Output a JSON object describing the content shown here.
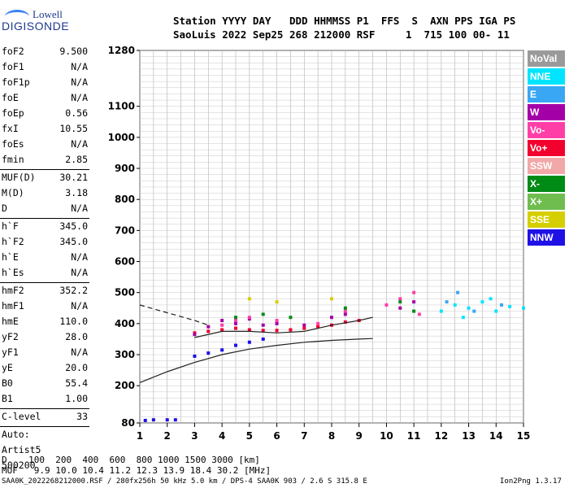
{
  "logo": {
    "top": "Lowell",
    "bottom": "DIGISONDE"
  },
  "header": {
    "line1": "Station YYYY DAY   DDD HHMMSS P1  FFS  S  AXN PPS IGA PS",
    "line2": "SaoLuis 2022 Sep25 268 212000 RSF     1  715 100 00- 11"
  },
  "params": {
    "group1": [
      {
        "key": "foF2",
        "value": "9.500"
      },
      {
        "key": "foF1",
        "value": "N/A"
      },
      {
        "key": "foF1p",
        "value": "N/A"
      },
      {
        "key": "foE",
        "value": "N/A"
      },
      {
        "key": "foEp",
        "value": "0.56"
      },
      {
        "key": "fxI",
        "value": "10.55"
      },
      {
        "key": "foEs",
        "value": "N/A"
      },
      {
        "key": "fmin",
        "value": "2.85"
      }
    ],
    "group2": [
      {
        "key": "MUF(D)",
        "value": "30.21"
      },
      {
        "key": "M(D)",
        "value": "3.18"
      },
      {
        "key": "D",
        "value": "N/A"
      }
    ],
    "group3": [
      {
        "key": "h`F",
        "value": "345.0"
      },
      {
        "key": "h`F2",
        "value": "345.0"
      },
      {
        "key": "h`E",
        "value": "N/A"
      },
      {
        "key": "h`Es",
        "value": "N/A"
      }
    ],
    "group4": [
      {
        "key": "hmF2",
        "value": "352.2"
      },
      {
        "key": "hmF1",
        "value": "N/A"
      },
      {
        "key": "hmE",
        "value": "110.0"
      },
      {
        "key": "yF2",
        "value": "28.0"
      },
      {
        "key": "yF1",
        "value": "N/A"
      },
      {
        "key": "yE",
        "value": "20.0"
      },
      {
        "key": "B0",
        "value": "55.4"
      },
      {
        "key": "B1",
        "value": "1.00"
      }
    ],
    "clevel": {
      "key": "C-level",
      "value": "33"
    },
    "auto": [
      "Auto:",
      "Artist5",
      "500200"
    ]
  },
  "legend": [
    {
      "label": "NoVal",
      "color": "#9a9a9a"
    },
    {
      "label": "NNE",
      "color": "#00e5ff"
    },
    {
      "label": "E",
      "color": "#3aa7f5"
    },
    {
      "label": "W",
      "color": "#a400a8"
    },
    {
      "label": "Vo-",
      "color": "#ff3fa8"
    },
    {
      "label": "Vo+",
      "color": "#f2002e"
    },
    {
      "label": "SSW",
      "color": "#f2a8a8"
    },
    {
      "label": "X-",
      "color": "#008a16"
    },
    {
      "label": "X+",
      "color": "#6fbd4f"
    },
    {
      "label": "SSE",
      "color": "#d6cf00"
    },
    {
      "label": "NNW",
      "color": "#1f10e6"
    }
  ],
  "footer": {
    "d_line": "D    100  200  400  600  800 1000 1500 3000 [km]",
    "muf_line": "MUF   9.9 10.0 10.4 11.2 12.3 13.9 18.4 30.2 [MHz]",
    "bottom_left": "SAA0K_2022268212000.RSF / 280fx256h 50 kHz 5.0 km / DPS-4 SAA0K 903 / 2.6 S 315.8 E",
    "bottom_right": "Ion2Png 1.3.17"
  },
  "chart_data": {
    "type": "scatter",
    "xlim": [
      1,
      15
    ],
    "ylim": [
      80,
      1280
    ],
    "xticks": [
      "1",
      "2",
      "3",
      "4",
      "5",
      "6",
      "7",
      "8",
      "9",
      "10",
      "11",
      "12",
      "13",
      "14",
      "15"
    ],
    "yticks": [
      "80",
      "200",
      "300",
      "400",
      "500",
      "600",
      "700",
      "800",
      "900",
      "1000",
      "1100",
      "1280"
    ],
    "grid": true,
    "xlabel": "",
    "ylabel": "",
    "series": [
      {
        "color": "#f2002e",
        "points": [
          [
            3.0,
            370
          ],
          [
            3.5,
            375
          ],
          [
            4.0,
            380
          ],
          [
            4.5,
            385
          ],
          [
            5.0,
            380
          ],
          [
            5.5,
            378
          ],
          [
            6.0,
            378
          ],
          [
            6.5,
            380
          ],
          [
            7.0,
            385
          ],
          [
            7.5,
            390
          ],
          [
            8.0,
            395
          ],
          [
            8.5,
            405
          ],
          [
            9.0,
            410
          ]
        ]
      },
      {
        "color": "#a400a8",
        "points": [
          [
            3.0,
            365
          ],
          [
            3.5,
            390
          ],
          [
            4.0,
            410
          ],
          [
            4.5,
            400
          ],
          [
            5.0,
            415
          ],
          [
            5.5,
            395
          ],
          [
            6.0,
            400
          ],
          [
            7.0,
            395
          ],
          [
            8.0,
            420
          ],
          [
            8.5,
            430
          ],
          [
            10.5,
            450
          ],
          [
            11.0,
            470
          ]
        ]
      },
      {
        "color": "#ff3fa8",
        "points": [
          [
            4.0,
            395
          ],
          [
            4.5,
            410
          ],
          [
            5.0,
            420
          ],
          [
            6.0,
            410
          ],
          [
            7.5,
            400
          ],
          [
            8.5,
            440
          ],
          [
            10.0,
            460
          ],
          [
            10.5,
            480
          ],
          [
            11.0,
            500
          ],
          [
            11.2,
            430
          ]
        ]
      },
      {
        "color": "#1f10e6",
        "points": [
          [
            3.0,
            295
          ],
          [
            3.5,
            305
          ],
          [
            4.0,
            315
          ],
          [
            4.5,
            330
          ],
          [
            5.0,
            340
          ],
          [
            5.5,
            350
          ],
          [
            2.0,
            90
          ],
          [
            2.3,
            90
          ],
          [
            1.2,
            88
          ],
          [
            1.5,
            90
          ]
        ]
      },
      {
        "color": "#00e5ff",
        "points": [
          [
            12.0,
            440
          ],
          [
            12.5,
            460
          ],
          [
            13.0,
            450
          ],
          [
            13.5,
            470
          ],
          [
            14.0,
            440
          ],
          [
            14.5,
            455
          ],
          [
            15.0,
            450
          ],
          [
            12.8,
            420
          ],
          [
            13.8,
            480
          ]
        ]
      },
      {
        "color": "#008a16",
        "points": [
          [
            4.5,
            420
          ],
          [
            5.5,
            430
          ],
          [
            6.5,
            420
          ],
          [
            8.5,
            450
          ],
          [
            10.5,
            470
          ],
          [
            11.0,
            440
          ]
        ]
      },
      {
        "color": "#d6cf00",
        "points": [
          [
            5.0,
            480
          ],
          [
            6.0,
            470
          ],
          [
            8.0,
            480
          ]
        ]
      },
      {
        "color": "#3aa7f5",
        "points": [
          [
            12.2,
            470
          ],
          [
            13.2,
            440
          ],
          [
            14.2,
            460
          ],
          [
            12.6,
            500
          ]
        ]
      }
    ],
    "curves": [
      {
        "name": "trace",
        "style": "solid",
        "points": [
          [
            3.0,
            355
          ],
          [
            4.0,
            375
          ],
          [
            5.0,
            375
          ],
          [
            6.0,
            370
          ],
          [
            7.0,
            375
          ],
          [
            8.0,
            395
          ],
          [
            9.0,
            410
          ],
          [
            9.5,
            420
          ]
        ]
      },
      {
        "name": "profile",
        "style": "solid",
        "points": [
          [
            1.0,
            210
          ],
          [
            2.0,
            245
          ],
          [
            3.0,
            275
          ],
          [
            4.0,
            300
          ],
          [
            5.0,
            318
          ],
          [
            6.0,
            330
          ],
          [
            7.0,
            340
          ],
          [
            8.0,
            346
          ],
          [
            9.0,
            350
          ],
          [
            9.5,
            352
          ]
        ]
      },
      {
        "name": "extrapolation",
        "style": "dashed",
        "points": [
          [
            1.0,
            460
          ],
          [
            2.0,
            435
          ],
          [
            3.0,
            410
          ],
          [
            3.5,
            395
          ]
        ]
      }
    ]
  }
}
